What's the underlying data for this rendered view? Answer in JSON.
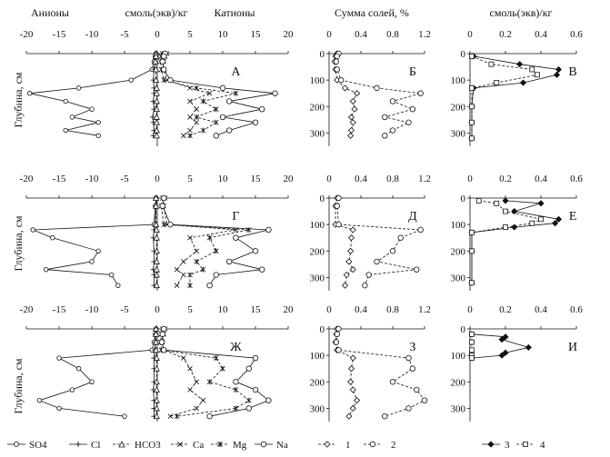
{
  "headers": {
    "anions": "Анионы",
    "units_left": "смоль(экв)/кг",
    "cations": "Катионы",
    "salts": "Сумма солей, %",
    "units_right": "смоль(экв)/кг"
  },
  "ylabel": "Глубина, см",
  "legend": {
    "so4": "SO4",
    "cl": "Cl",
    "hco3": "HCO3",
    "ca": "Ca",
    "mg": "Mg",
    "na": "Na",
    "s1": "1",
    "s2": "2",
    "s3": "3",
    "s4": "4"
  },
  "x_ticks_ions": [
    "-20",
    "-15",
    "-10",
    "-5",
    "0",
    "5",
    "10",
    "15",
    "20"
  ],
  "x_ticks_salts": [
    "0",
    "0.4",
    "0.8",
    "1.2"
  ],
  "x_ticks_units": [
    "0",
    "0.2",
    "0.4",
    "0.6"
  ],
  "y_ticks": [
    "0",
    "100",
    "200",
    "300"
  ],
  "panel_labels": [
    "А",
    "Б",
    "В",
    "Г",
    "Д",
    "Е",
    "Ж",
    "З",
    "И"
  ],
  "colors": {
    "line": "#111111",
    "axis": "#111111",
    "background": "#ffffff"
  },
  "chart_data": [
    {
      "type": "line",
      "panel": "А",
      "xlim": [
        -20,
        20
      ],
      "ylim": [
        0,
        350
      ],
      "y_inverted": true,
      "series": [
        {
          "name": "SO4",
          "x": [
            -0.2,
            -0.3,
            -0.5,
            -0.8,
            -4,
            -12,
            -19.5,
            -14,
            -10,
            -13,
            -9,
            -14,
            -9
          ],
          "y": [
            0,
            10,
            30,
            60,
            100,
            130,
            150,
            180,
            210,
            240,
            260,
            290,
            310
          ]
        },
        {
          "name": "Cl",
          "x": [
            -0.1,
            -0.2,
            -0.3,
            -0.5,
            -0.6,
            -0.5,
            -0.5,
            -0.6,
            -0.5,
            -0.7,
            -0.6,
            -0.5,
            -0.6
          ],
          "y": [
            0,
            10,
            30,
            60,
            100,
            130,
            150,
            180,
            210,
            240,
            260,
            290,
            310
          ]
        },
        {
          "name": "HCO3",
          "x": [
            -0.2,
            -0.2,
            -0.3,
            -0.2,
            -0.2,
            -0.1,
            -0.1,
            -0.1,
            -0.1,
            -0.1,
            -0.1,
            -0.1,
            -0.1
          ],
          "y": [
            0,
            10,
            30,
            60,
            100,
            130,
            150,
            180,
            210,
            240,
            260,
            290,
            310
          ]
        },
        {
          "name": "Ca",
          "x": [
            1.5,
            1.2,
            1,
            1,
            1.5,
            5,
            8,
            5,
            6,
            5,
            6,
            5,
            4
          ],
          "y": [
            0,
            10,
            30,
            60,
            100,
            130,
            150,
            180,
            210,
            240,
            260,
            290,
            310
          ]
        },
        {
          "name": "Mg",
          "x": [
            0.8,
            0.6,
            0.5,
            0.6,
            1,
            6,
            12,
            7,
            9,
            6,
            9,
            7,
            5
          ],
          "y": [
            0,
            10,
            30,
            60,
            100,
            130,
            150,
            180,
            210,
            240,
            260,
            290,
            310
          ]
        },
        {
          "name": "Na",
          "x": [
            1.2,
            1,
            0.8,
            1,
            2,
            10,
            18,
            11,
            16,
            10,
            15,
            11,
            9
          ],
          "y": [
            0,
            10,
            30,
            60,
            100,
            130,
            150,
            180,
            210,
            240,
            260,
            290,
            310
          ]
        }
      ]
    },
    {
      "type": "line",
      "panel": "Б",
      "xlim": [
        0,
        1.2
      ],
      "ylim": [
        0,
        350
      ],
      "y_inverted": true,
      "series": [
        {
          "name": "1",
          "x": [
            0.1,
            0.08,
            0.07,
            0.08,
            0.1,
            0.2,
            0.35,
            0.3,
            0.32,
            0.28,
            0.3,
            0.28,
            0.27
          ],
          "y": [
            0,
            10,
            30,
            60,
            100,
            130,
            150,
            180,
            210,
            240,
            260,
            290,
            310
          ]
        },
        {
          "name": "2",
          "x": [
            0.12,
            0.1,
            0.09,
            0.1,
            0.15,
            0.6,
            1.15,
            0.8,
            1.05,
            0.7,
            1.0,
            0.8,
            0.7
          ],
          "y": [
            0,
            10,
            30,
            60,
            100,
            130,
            150,
            180,
            210,
            240,
            260,
            290,
            310
          ]
        }
      ]
    },
    {
      "type": "line",
      "panel": "В",
      "xlim": [
        0,
        0.6
      ],
      "ylim": [
        0,
        350
      ],
      "y_inverted": true,
      "series": [
        {
          "name": "3",
          "x": [
            0.02,
            0.28,
            0.5,
            0.49,
            0.3,
            0.02,
            0.01,
            0.01,
            0.01
          ],
          "y": [
            10,
            40,
            60,
            80,
            110,
            130,
            200,
            260,
            320
          ]
        },
        {
          "name": "4",
          "x": [
            0.01,
            0.12,
            0.35,
            0.38,
            0.15,
            0.01,
            0.01,
            0.01,
            0.01
          ],
          "y": [
            10,
            40,
            60,
            80,
            110,
            130,
            200,
            260,
            320
          ]
        }
      ]
    },
    {
      "type": "line",
      "panel": "Г",
      "xlim": [
        -20,
        20
      ],
      "ylim": [
        0,
        350
      ],
      "y_inverted": true,
      "series": [
        {
          "name": "SO4",
          "x": [
            -0.2,
            -0.3,
            -0.5,
            -19,
            -16,
            -9,
            -10,
            -17,
            -7,
            -6
          ],
          "y": [
            0,
            30,
            100,
            120,
            150,
            200,
            240,
            270,
            290,
            330
          ]
        },
        {
          "name": "Cl",
          "x": [
            -0.1,
            -0.2,
            -0.3,
            -0.5,
            -0.6,
            -0.5,
            -0.5,
            -0.6,
            -0.5,
            -0.5
          ],
          "y": [
            0,
            30,
            100,
            120,
            150,
            200,
            240,
            270,
            290,
            330
          ]
        },
        {
          "name": "HCO3",
          "x": [
            -0.2,
            -0.2,
            -0.2,
            -0.1,
            -0.1,
            -0.1,
            -0.1,
            -0.1,
            -0.1,
            -0.1
          ],
          "y": [
            0,
            30,
            100,
            120,
            150,
            200,
            240,
            270,
            290,
            330
          ]
        },
        {
          "name": "Ca",
          "x": [
            1.2,
            1,
            1.5,
            12,
            5,
            6,
            4,
            3,
            4,
            3
          ],
          "y": [
            0,
            30,
            100,
            120,
            150,
            200,
            240,
            270,
            290,
            330
          ]
        },
        {
          "name": "Mg",
          "x": [
            0.8,
            0.6,
            1,
            14,
            8,
            9,
            6,
            7,
            5,
            5
          ],
          "y": [
            0,
            30,
            100,
            120,
            150,
            200,
            240,
            270,
            290,
            330
          ]
        },
        {
          "name": "Na",
          "x": [
            1,
            0.8,
            2,
            17,
            12,
            15,
            11,
            16,
            9,
            8
          ],
          "y": [
            0,
            30,
            100,
            120,
            150,
            200,
            240,
            270,
            290,
            330
          ]
        }
      ]
    },
    {
      "type": "line",
      "panel": "Д",
      "xlim": [
        0,
        1.2
      ],
      "ylim": [
        0,
        350
      ],
      "y_inverted": true,
      "series": [
        {
          "name": "1",
          "x": [
            0.1,
            0.08,
            0.08,
            0.3,
            0.28,
            0.27,
            0.25,
            0.3,
            0.22,
            0.2
          ],
          "y": [
            0,
            30,
            100,
            120,
            150,
            200,
            240,
            270,
            290,
            330
          ]
        },
        {
          "name": "2",
          "x": [
            0.12,
            0.1,
            0.12,
            1.15,
            0.9,
            0.8,
            0.6,
            1.1,
            0.5,
            0.45
          ],
          "y": [
            0,
            30,
            100,
            120,
            150,
            200,
            240,
            270,
            290,
            330
          ]
        }
      ]
    },
    {
      "type": "line",
      "panel": "Е",
      "xlim": [
        0,
        0.6
      ],
      "ylim": [
        0,
        350
      ],
      "y_inverted": true,
      "series": [
        {
          "name": "3",
          "x": [
            0.2,
            0.4,
            0.25,
            0.5,
            0.48,
            0.25,
            0.01,
            0.01,
            0.01
          ],
          "y": [
            10,
            20,
            50,
            80,
            95,
            110,
            130,
            200,
            320
          ]
        },
        {
          "name": "4",
          "x": [
            0.05,
            0.15,
            0.2,
            0.4,
            0.35,
            0.2,
            0.01,
            0.01,
            0.01
          ],
          "y": [
            10,
            20,
            50,
            80,
            95,
            110,
            130,
            200,
            320
          ]
        }
      ]
    },
    {
      "type": "line",
      "panel": "Ж",
      "xlim": [
        -20,
        20
      ],
      "ylim": [
        0,
        350
      ],
      "y_inverted": true,
      "series": [
        {
          "name": "SO4",
          "x": [
            -0.2,
            -0.3,
            -0.5,
            -0.8,
            -15,
            -12,
            -10,
            -13,
            -18,
            -15,
            -5
          ],
          "y": [
            0,
            20,
            50,
            80,
            110,
            150,
            200,
            230,
            270,
            300,
            330
          ]
        },
        {
          "name": "Cl",
          "x": [
            -0.1,
            -0.2,
            -0.3,
            -0.4,
            -0.5,
            -0.5,
            -0.5,
            -0.6,
            -0.5,
            -0.5,
            -0.5
          ],
          "y": [
            0,
            20,
            50,
            80,
            110,
            150,
            200,
            230,
            270,
            300,
            330
          ]
        },
        {
          "name": "HCO3",
          "x": [
            -0.2,
            -0.2,
            -0.2,
            -0.2,
            -0.1,
            -0.1,
            -0.1,
            -0.1,
            -0.1,
            -0.1,
            -0.1
          ],
          "y": [
            0,
            20,
            50,
            80,
            110,
            150,
            200,
            230,
            270,
            300,
            330
          ]
        },
        {
          "name": "Ca",
          "x": [
            1.2,
            1,
            0.8,
            1,
            4,
            5,
            6,
            5,
            7,
            6,
            2
          ],
          "y": [
            0,
            20,
            50,
            80,
            110,
            150,
            200,
            230,
            270,
            300,
            330
          ]
        },
        {
          "name": "Mg",
          "x": [
            0.8,
            0.6,
            0.5,
            0.6,
            9,
            10,
            8,
            12,
            14,
            12,
            3
          ],
          "y": [
            0,
            20,
            50,
            80,
            110,
            150,
            200,
            230,
            270,
            300,
            330
          ]
        },
        {
          "name": "Na",
          "x": [
            1,
            0.8,
            0.7,
            1,
            15,
            14,
            12,
            15,
            17,
            14,
            8
          ],
          "y": [
            0,
            20,
            50,
            80,
            110,
            150,
            200,
            230,
            270,
            300,
            330
          ]
        }
      ]
    },
    {
      "type": "line",
      "panel": "З",
      "xlim": [
        0,
        1.2
      ],
      "ylim": [
        0,
        350
      ],
      "y_inverted": true,
      "series": [
        {
          "name": "1",
          "x": [
            0.1,
            0.09,
            0.08,
            0.1,
            0.3,
            0.28,
            0.27,
            0.3,
            0.35,
            0.3,
            0.25
          ],
          "y": [
            0,
            20,
            50,
            80,
            110,
            150,
            200,
            230,
            270,
            300,
            330
          ]
        },
        {
          "name": "2",
          "x": [
            0.12,
            0.1,
            0.09,
            0.12,
            1.0,
            1.05,
            0.8,
            1.1,
            1.2,
            1.0,
            0.7
          ],
          "y": [
            0,
            20,
            50,
            80,
            110,
            150,
            200,
            230,
            270,
            300,
            330
          ]
        }
      ]
    },
    {
      "type": "line",
      "panel": "И",
      "xlim": [
        0,
        0.6
      ],
      "ylim": [
        0,
        350
      ],
      "y_inverted": true,
      "series": [
        {
          "name": "3",
          "x": [
            0.01,
            0.2,
            0.18,
            0.33,
            0.2,
            0.18,
            0.01
          ],
          "y": [
            20,
            30,
            40,
            70,
            90,
            100,
            110
          ]
        },
        {
          "name": "4",
          "x": [
            0.01,
            0.01,
            0.01,
            0.01,
            0.01
          ],
          "y": [
            20,
            50,
            80,
            100,
            110
          ]
        }
      ]
    }
  ]
}
